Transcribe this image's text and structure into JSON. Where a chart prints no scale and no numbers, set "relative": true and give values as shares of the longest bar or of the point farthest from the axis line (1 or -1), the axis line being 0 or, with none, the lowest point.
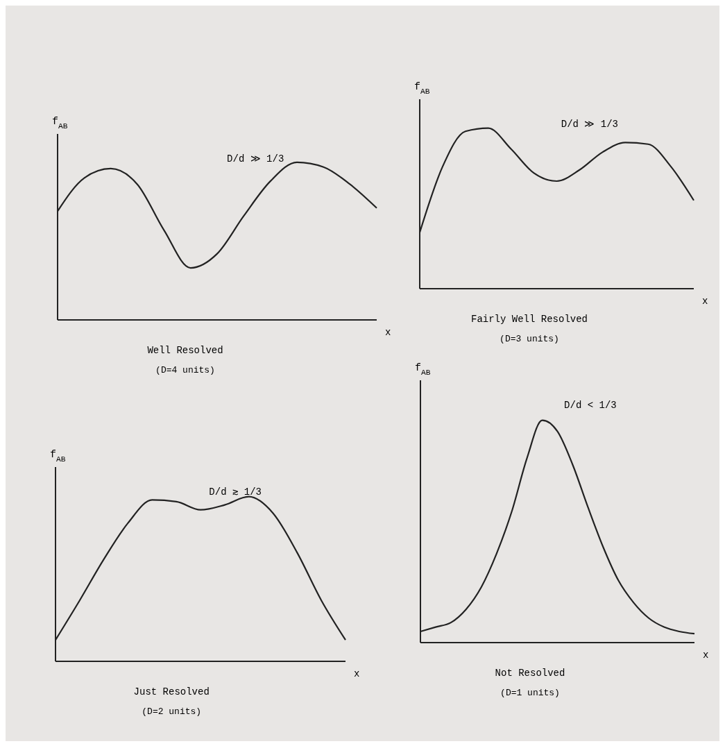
{
  "chart_data": [
    {
      "type": "line",
      "title": "Well Resolved",
      "subtitle": "(D=4 units)",
      "ylabel": "f$_{AB}$",
      "xlabel": "x",
      "annotations": [
        "D/d ≫ 1/3"
      ],
      "relative": true,
      "line_style": "solid",
      "categories": [
        null,
        null,
        null,
        null,
        null,
        null,
        null,
        null,
        null,
        null,
        null,
        null,
        null
      ],
      "series": [
        {
          "color": "#222222",
          "values": [
            0.69,
            0.9,
            0.96,
            0.86,
            0.57,
            0.33,
            0.42,
            0.66,
            0.88,
            1,
            0.97,
            0.86,
            0.71
          ]
        }
      ]
    },
    {
      "type": "line",
      "title": "Fairly Well Resolved",
      "subtitle": "(D=3 units)",
      "ylabel": "f$_{AB}$",
      "xlabel": "x",
      "annotations": [
        "D/d ≫ 1/3"
      ],
      "relative": true,
      "line_style": "solid",
      "categories": [
        null,
        null,
        null,
        null,
        null,
        null,
        null,
        null,
        null,
        null,
        null,
        null,
        null
      ],
      "series": [
        {
          "color": "#222222",
          "values": [
            0.35,
            0.76,
            0.98,
            1,
            0.87,
            0.72,
            0.67,
            0.74,
            0.85,
            0.91,
            0.9,
            0.76,
            0.55
          ]
        }
      ]
    },
    {
      "type": "line",
      "title": "Just Resolved",
      "subtitle": "(D=2 units)",
      "ylabel": "f$_{AB}$",
      "xlabel": "x",
      "annotations": [
        "D/d ≳ 1/3"
      ],
      "relative": true,
      "line_style": "solid",
      "categories": [
        null,
        null,
        null,
        null,
        null,
        null,
        null,
        null,
        null,
        null,
        null,
        null,
        null
      ],
      "series": [
        {
          "color": "#222222",
          "values": [
            0.13,
            0.37,
            0.62,
            0.84,
            0.98,
            0.97,
            0.92,
            0.95,
            1,
            0.9,
            0.66,
            0.37,
            0.13
          ]
        }
      ]
    },
    {
      "type": "line",
      "title": "Not Resolved",
      "subtitle": "(D=1 units)",
      "ylabel": "f$_{AB}$",
      "xlabel": "x",
      "annotations": [
        "D/d < 1/3"
      ],
      "relative": true,
      "line_style": "solid",
      "categories": [
        null,
        null,
        null,
        null,
        null,
        null,
        null,
        null,
        null,
        null,
        null,
        null,
        null,
        null,
        null,
        null,
        null,
        null,
        null
      ],
      "series": [
        {
          "color": "#222222",
          "values": [
            0.05,
            0.07,
            0.09,
            0.15,
            0.25,
            0.4,
            0.59,
            0.83,
            1,
            0.95,
            0.8,
            0.61,
            0.43,
            0.28,
            0.18,
            0.11,
            0.07,
            0.05,
            0.04
          ]
        }
      ]
    }
  ]
}
